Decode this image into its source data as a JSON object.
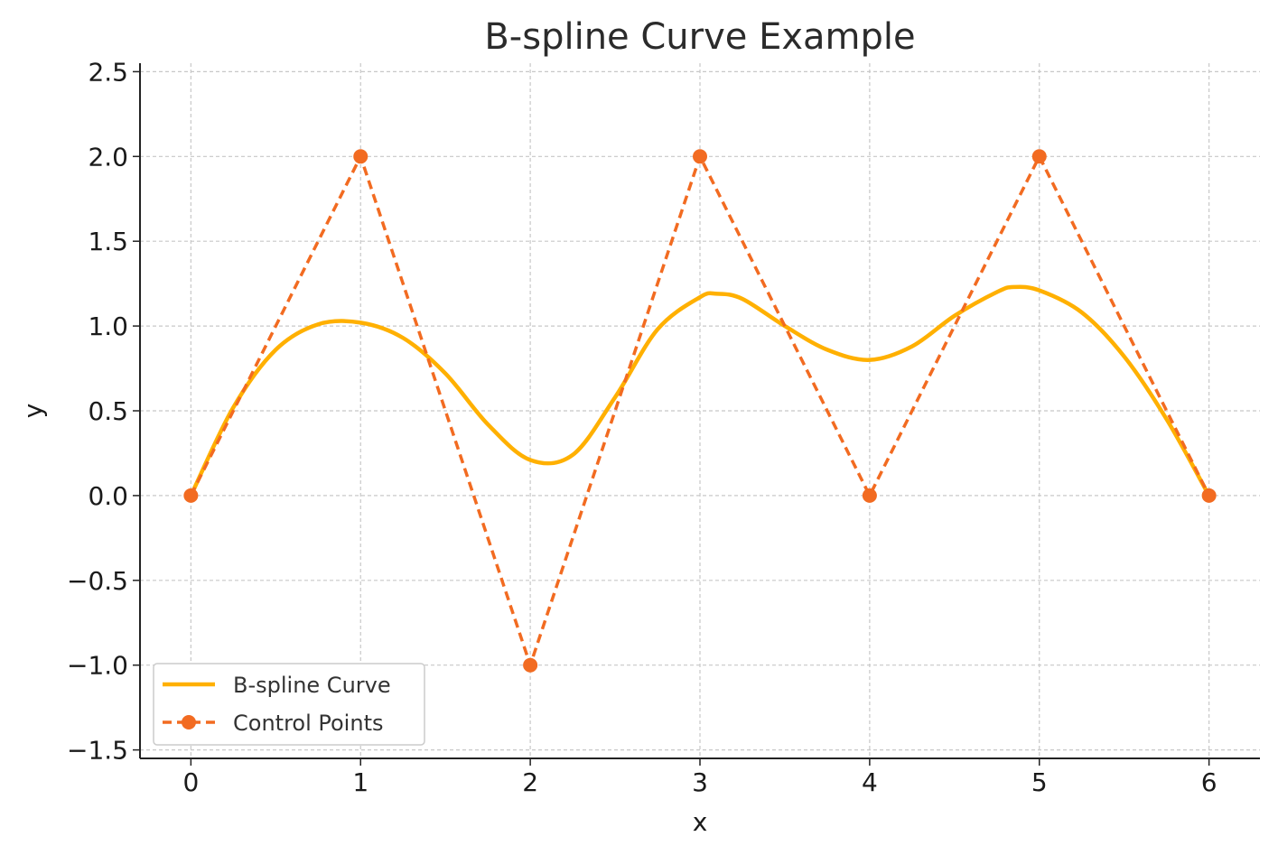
{
  "chart_data": {
    "type": "line",
    "title": "B-spline Curve Example",
    "xlabel": "x",
    "ylabel": "y",
    "xlim": [
      -0.3,
      6.3
    ],
    "ylim": [
      -1.55,
      2.55
    ],
    "xticks": [
      0,
      1,
      2,
      3,
      4,
      5,
      6
    ],
    "xtick_labels": [
      "0",
      "1",
      "2",
      "3",
      "4",
      "5",
      "6"
    ],
    "yticks": [
      -1.5,
      -1.0,
      -0.5,
      0.0,
      0.5,
      1.0,
      1.5,
      2.0,
      2.5
    ],
    "ytick_labels": [
      "−1.5",
      "−1.0",
      "−0.5",
      "0.0",
      "0.5",
      "1.0",
      "1.5",
      "2.0",
      "2.5"
    ],
    "grid": true,
    "legend_position": "lower-left",
    "series": [
      {
        "name": "B-spline Curve",
        "style": "solid",
        "color": "#FFB000",
        "x": [
          0,
          0.25,
          0.5,
          0.75,
          1.0,
          1.25,
          1.5,
          1.75,
          2.0,
          2.25,
          2.5,
          2.75,
          3.0,
          3.1,
          3.25,
          3.5,
          3.75,
          4.0,
          4.25,
          4.5,
          4.75,
          4.85,
          5.0,
          5.25,
          5.5,
          5.75,
          6.0
        ],
        "y": [
          0.0,
          0.52,
          0.86,
          1.01,
          1.02,
          0.93,
          0.72,
          0.42,
          0.21,
          0.24,
          0.58,
          0.98,
          1.17,
          1.19,
          1.16,
          1.0,
          0.86,
          0.8,
          0.88,
          1.06,
          1.2,
          1.23,
          1.21,
          1.08,
          0.82,
          0.45,
          0.0
        ]
      },
      {
        "name": "Control Points",
        "style": "dashed",
        "marker": "circle",
        "color": "#F26B21",
        "x": [
          0,
          1,
          2,
          3,
          4,
          5,
          6
        ],
        "y": [
          0,
          2,
          -1,
          2,
          0,
          2,
          0
        ]
      }
    ]
  }
}
